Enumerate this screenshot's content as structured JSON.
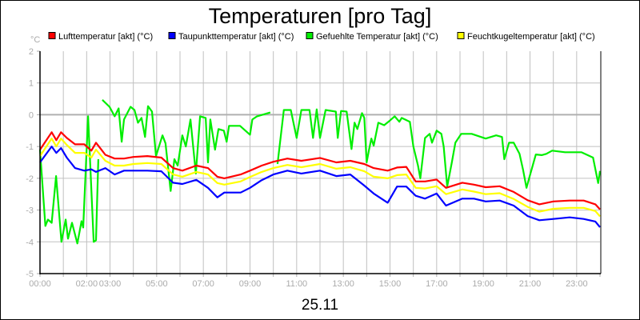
{
  "chart_data": {
    "type": "line",
    "title": "Temperaturen [pro Tag]",
    "xlabel": "25.11",
    "ylabel": "°C",
    "ylim": [
      -5,
      2
    ],
    "xlim_hours": [
      0,
      24
    ],
    "yticks": [
      "2",
      "1",
      "0",
      "-1",
      "-2",
      "-3",
      "-4",
      "-5"
    ],
    "xticks": [
      {
        "h": 0,
        "label": "00:00"
      },
      {
        "h": 2,
        "label": "02:00"
      },
      {
        "h": 3,
        "label": "03:00"
      },
      {
        "h": 5,
        "label": "05:00"
      },
      {
        "h": 7,
        "label": "07:00"
      },
      {
        "h": 9,
        "label": "09:00"
      },
      {
        "h": 11,
        "label": "11:00"
      },
      {
        "h": 13,
        "label": "13:00"
      },
      {
        "h": 15,
        "label": "15:00"
      },
      {
        "h": 17,
        "label": "17:00"
      },
      {
        "h": 19,
        "label": "19:00"
      },
      {
        "h": 21,
        "label": "21:00"
      },
      {
        "h": 23,
        "label": "23:00"
      }
    ],
    "grid": true,
    "legend_placement": "top",
    "series": [
      {
        "name": "Lufttemperatur [akt] (°C)",
        "color": "#ff0000",
        "x": [
          0,
          0.5,
          0.7,
          0.9,
          1.15,
          1.5,
          1.9,
          2.2,
          2.4,
          2.8,
          3.2,
          3.6,
          4.0,
          4.6,
          5.2,
          5.7,
          6.1,
          6.7,
          7.2,
          7.6,
          7.9,
          8.6,
          9.0,
          9.5,
          10.0,
          10.6,
          11.2,
          12.0,
          12.7,
          13.3,
          13.9,
          14.3,
          14.9,
          15.3,
          15.7,
          16.1,
          16.5,
          17.0,
          17.4,
          18.1,
          18.6,
          19.1,
          19.7,
          20.3,
          20.9,
          21.4,
          22.0,
          22.7,
          23.3,
          23.8,
          24.0
        ],
        "y": [
          -1.1,
          -0.55,
          -0.8,
          -0.55,
          -0.73,
          -0.93,
          -0.93,
          -1.13,
          -0.88,
          -1.26,
          -1.38,
          -1.38,
          -1.33,
          -1.3,
          -1.35,
          -1.68,
          -1.76,
          -1.6,
          -1.68,
          -1.95,
          -2.0,
          -1.88,
          -1.76,
          -1.6,
          -1.48,
          -1.38,
          -1.45,
          -1.36,
          -1.5,
          -1.45,
          -1.55,
          -1.68,
          -1.76,
          -1.66,
          -1.64,
          -2.1,
          -2.1,
          -2.04,
          -2.3,
          -2.14,
          -2.2,
          -2.28,
          -2.25,
          -2.43,
          -2.69,
          -2.82,
          -2.73,
          -2.7,
          -2.7,
          -2.82,
          -2.98
        ]
      },
      {
        "name": "Taupunkttemperatur [akt] (°C)",
        "color": "#0000ff",
        "x": [
          0,
          0.5,
          0.7,
          0.9,
          1.15,
          1.5,
          1.9,
          2.2,
          2.4,
          2.8,
          3.2,
          3.6,
          4.0,
          4.6,
          5.2,
          5.7,
          6.1,
          6.7,
          7.2,
          7.6,
          7.9,
          8.6,
          9.0,
          9.5,
          10.0,
          10.6,
          11.2,
          12.0,
          12.7,
          13.3,
          13.9,
          14.3,
          14.9,
          15.3,
          15.7,
          16.1,
          16.5,
          17.0,
          17.4,
          18.1,
          18.6,
          19.1,
          19.7,
          20.3,
          20.9,
          21.4,
          22.0,
          22.7,
          23.3,
          23.8,
          24.0
        ],
        "y": [
          -1.5,
          -1.0,
          -1.2,
          -1.05,
          -1.35,
          -1.68,
          -1.76,
          -1.72,
          -1.8,
          -1.68,
          -1.88,
          -1.76,
          -1.76,
          -1.76,
          -1.78,
          -2.14,
          -2.18,
          -2.05,
          -2.3,
          -2.6,
          -2.45,
          -2.45,
          -2.3,
          -2.06,
          -1.88,
          -1.76,
          -1.85,
          -1.76,
          -1.93,
          -1.88,
          -2.23,
          -2.48,
          -2.77,
          -2.26,
          -2.26,
          -2.55,
          -2.64,
          -2.48,
          -2.86,
          -2.64,
          -2.64,
          -2.73,
          -2.7,
          -2.86,
          -3.19,
          -3.32,
          -3.28,
          -3.23,
          -3.28,
          -3.36,
          -3.54
        ]
      },
      {
        "name": "Gefuehlte Temperatur [akt] (°C)",
        "color": "#00ee00",
        "x": [
          0,
          0.23,
          0.34,
          0.5,
          0.69,
          0.92,
          1.1,
          1.2,
          1.37,
          1.6,
          1.78,
          1.85,
          2.06,
          2.3,
          2.4,
          2.5,
          2.58,
          2.67,
          2.98,
          3.2,
          3.37,
          3.5,
          3.6,
          3.88,
          4.05,
          4.2,
          4.35,
          4.5,
          4.63,
          4.8,
          4.97,
          5.25,
          5.38,
          5.6,
          5.76,
          5.9,
          6.1,
          6.25,
          6.45,
          6.68,
          6.86,
          7.1,
          7.2,
          7.3,
          7.5,
          7.65,
          7.88,
          8.0,
          8.1,
          8.57,
          9.0,
          9.1,
          9.3,
          9.87,
          10.0,
          10.18,
          10.45,
          10.75,
          11.0,
          11.2,
          11.55,
          11.7,
          11.86,
          12.0,
          12.24,
          12.68,
          12.76,
          12.9,
          13.14,
          13.35,
          13.48,
          13.6,
          13.8,
          13.9,
          14.0,
          14.1,
          14.2,
          14.3,
          14.5,
          14.75,
          15.0,
          15.2,
          15.4,
          15.5,
          15.85,
          16.0,
          16.2,
          16.3,
          16.5,
          16.7,
          16.8,
          17.0,
          17.2,
          17.3,
          17.45,
          17.65,
          17.8,
          18.05,
          18.5,
          19.1,
          19.55,
          19.8,
          19.9,
          20.1,
          20.3,
          20.55,
          20.7,
          20.85,
          21.0,
          21.25,
          21.5,
          21.7,
          21.95,
          22.5,
          23.2,
          23.7,
          23.92,
          24.0
        ],
        "y": [
          -1.1,
          -3.5,
          -3.3,
          -3.4,
          -1.93,
          -4.0,
          -3.3,
          -3.9,
          -3.4,
          -4.05,
          -3.35,
          -3.55,
          -0.05,
          -4.0,
          -3.95,
          -1.4,
          null,
          0.47,
          0.25,
          -0.05,
          0.2,
          -0.85,
          -0.15,
          0.25,
          0.15,
          -0.25,
          -0.1,
          -0.7,
          0.27,
          0.1,
          -1.3,
          -0.65,
          -0.9,
          -2.4,
          -1.4,
          -1.6,
          -0.65,
          -1.0,
          -0.15,
          -1.85,
          -0.05,
          -0.1,
          -1.5,
          -0.15,
          -1.1,
          -0.45,
          -0.5,
          -0.85,
          -0.35,
          -0.35,
          -0.63,
          -0.15,
          -0.05,
          0.07,
          null,
          -1.55,
          0.15,
          0.15,
          -0.73,
          0.15,
          0.15,
          -0.73,
          0.17,
          -0.73,
          0.15,
          0.1,
          -0.73,
          0.12,
          0.1,
          -1.08,
          -0.25,
          -0.45,
          0.05,
          -0.1,
          -1.5,
          -1.1,
          -0.75,
          -0.97,
          -0.25,
          -0.33,
          -0.18,
          -0.05,
          -0.22,
          -0.1,
          -0.22,
          -1.0,
          -1.6,
          -2.0,
          -0.73,
          -0.6,
          -0.88,
          -0.5,
          -0.6,
          -1.0,
          -2.26,
          -1.5,
          -0.88,
          -0.6,
          -0.6,
          -0.75,
          -0.65,
          -0.7,
          -1.4,
          -0.88,
          -0.88,
          -1.23,
          -1.73,
          -2.3,
          -1.9,
          -1.25,
          -1.27,
          -1.23,
          -1.13,
          -1.18,
          -1.18,
          -1.35,
          -2.15,
          -1.77
        ]
      },
      {
        "name": "Feuchtkugeltemperatur [akt] (°C)",
        "color": "#ffff00",
        "x": [
          0,
          0.5,
          0.7,
          0.9,
          1.15,
          1.5,
          1.9,
          2.2,
          2.4,
          2.8,
          3.2,
          3.6,
          4.0,
          4.6,
          5.2,
          5.7,
          6.1,
          6.7,
          7.2,
          7.6,
          7.9,
          8.6,
          9.0,
          9.5,
          10.0,
          10.6,
          11.2,
          12.0,
          12.7,
          13.3,
          13.9,
          14.3,
          14.9,
          15.3,
          15.7,
          16.1,
          16.5,
          17.0,
          17.4,
          18.1,
          18.6,
          19.1,
          19.7,
          20.3,
          20.9,
          21.4,
          22.0,
          22.7,
          23.3,
          23.8,
          24.0
        ],
        "y": [
          -1.3,
          -0.75,
          -1.0,
          -0.75,
          -0.95,
          -1.2,
          -1.2,
          -1.35,
          -1.1,
          -1.45,
          -1.6,
          -1.6,
          -1.55,
          -1.52,
          -1.55,
          -1.88,
          -1.95,
          -1.8,
          -1.88,
          -2.15,
          -2.2,
          -2.1,
          -1.96,
          -1.8,
          -1.68,
          -1.58,
          -1.65,
          -1.55,
          -1.7,
          -1.65,
          -1.78,
          -1.95,
          -2.0,
          -1.9,
          -1.88,
          -2.3,
          -2.32,
          -2.25,
          -2.5,
          -2.35,
          -2.42,
          -2.5,
          -2.47,
          -2.65,
          -2.9,
          -3.05,
          -2.96,
          -2.93,
          -2.93,
          -3.03,
          -3.2
        ]
      }
    ]
  }
}
